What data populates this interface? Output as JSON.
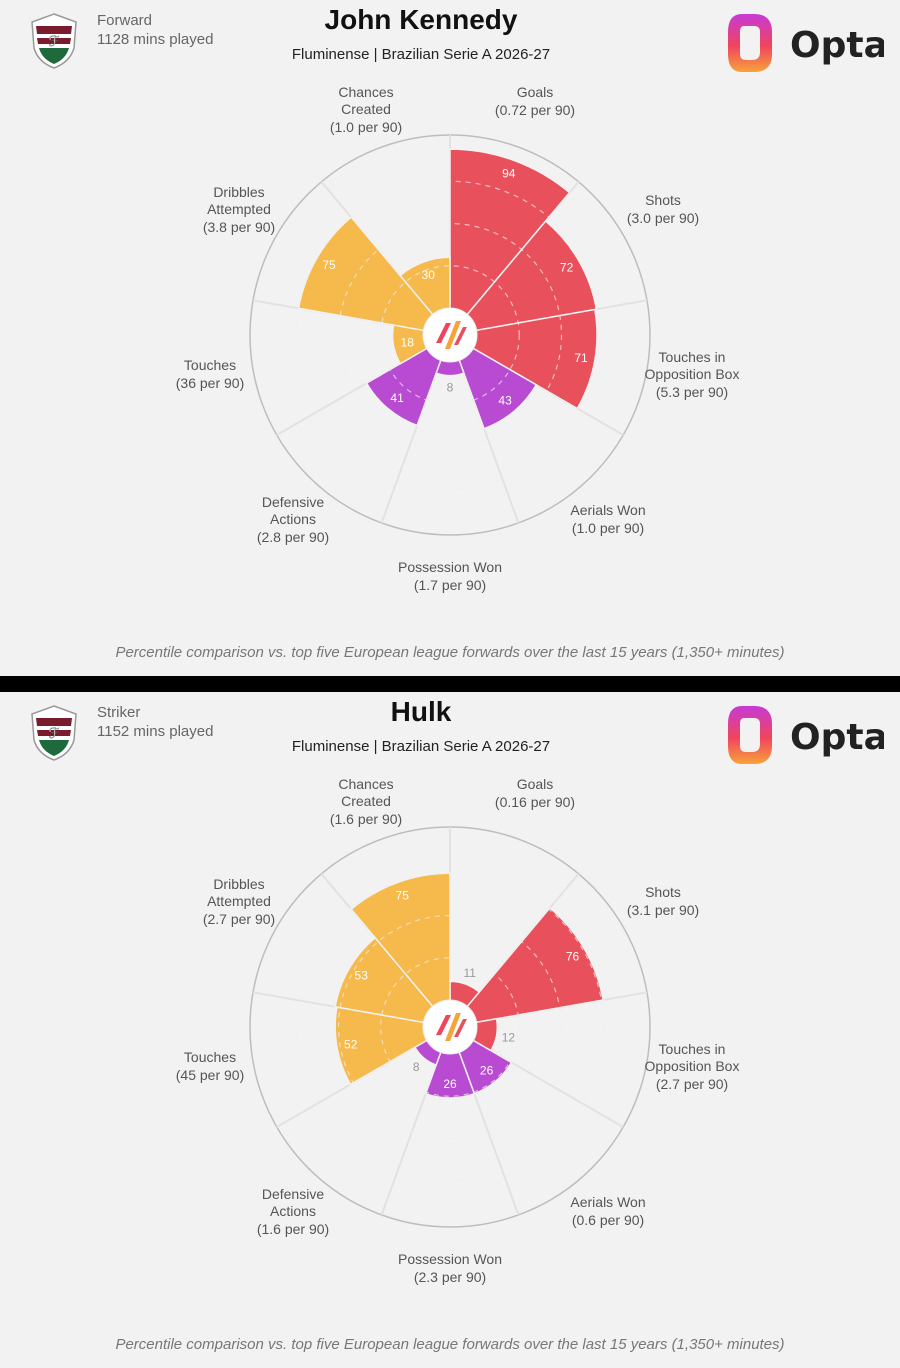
{
  "brand": {
    "name": "Opta"
  },
  "colors": {
    "attacking": "#e8505b",
    "possession": "#f6b94b",
    "defending": "#b94ad2",
    "ring": "#cfcfcf",
    "label": "#555555"
  },
  "charts": [
    {
      "position": "Forward",
      "minutes": "1128 mins played",
      "name": "John Kennedy",
      "subtitle": "Fluminense | Brazilian Serie A 2026-27",
      "footnote": "Percentile comparison vs. top five European league forwards over the last 15 years (1,350+ minutes)"
    },
    {
      "position": "Striker",
      "minutes": "1152 mins played",
      "name": "Hulk",
      "subtitle": "Fluminense | Brazilian Serie A 2026-27",
      "footnote": "Percentile comparison vs. top five European league forwards over the last 15 years (1,350+ minutes)"
    }
  ],
  "chart_data": [
    {
      "type": "radar",
      "title": "John Kennedy",
      "range": [
        0,
        100
      ],
      "metrics": [
        {
          "name": "Goals",
          "rate": "(0.72 per 90)",
          "value": 94,
          "group": "attacking"
        },
        {
          "name": "Shots",
          "rate": "(3.0 per 90)",
          "value": 72,
          "group": "attacking"
        },
        {
          "name": "Touches in Opposition Box",
          "rate": "(5.3 per 90)",
          "value": 71,
          "group": "attacking"
        },
        {
          "name": "Aerials Won",
          "rate": "(1.0 per 90)",
          "value": 43,
          "group": "defending"
        },
        {
          "name": "Possession Won",
          "rate": "(1.7 per 90)",
          "value": 8,
          "group": "defending"
        },
        {
          "name": "Defensive Actions",
          "rate": "(2.8 per 90)",
          "value": 41,
          "group": "defending"
        },
        {
          "name": "Touches",
          "rate": "(36 per 90)",
          "value": 18,
          "group": "possession"
        },
        {
          "name": "Dribbles Attempted",
          "rate": "(3.8 per 90)",
          "value": 75,
          "group": "possession"
        },
        {
          "name": "Chances Created",
          "rate": "(1.0 per 90)",
          "value": 30,
          "group": "possession"
        }
      ]
    },
    {
      "type": "radar",
      "title": "Hulk",
      "range": [
        0,
        100
      ],
      "metrics": [
        {
          "name": "Goals",
          "rate": "(0.16 per 90)",
          "value": 11,
          "group": "attacking"
        },
        {
          "name": "Shots",
          "rate": "(3.1 per 90)",
          "value": 76,
          "group": "attacking"
        },
        {
          "name": "Touches in Opposition Box",
          "rate": "(2.7 per 90)",
          "value": 12,
          "group": "attacking"
        },
        {
          "name": "Aerials Won",
          "rate": "(0.6 per 90)",
          "value": 26,
          "group": "defending"
        },
        {
          "name": "Possession Won",
          "rate": "(2.3 per 90)",
          "value": 26,
          "group": "defending"
        },
        {
          "name": "Defensive Actions",
          "rate": "(1.6 per 90)",
          "value": 8,
          "group": "defending"
        },
        {
          "name": "Touches",
          "rate": "(45 per 90)",
          "value": 52,
          "group": "possession"
        },
        {
          "name": "Dribbles Attempted",
          "rate": "(2.7 per 90)",
          "value": 53,
          "group": "possession"
        },
        {
          "name": "Chances Created",
          "rate": "(1.6 per 90)",
          "value": 75,
          "group": "possession"
        }
      ]
    }
  ]
}
